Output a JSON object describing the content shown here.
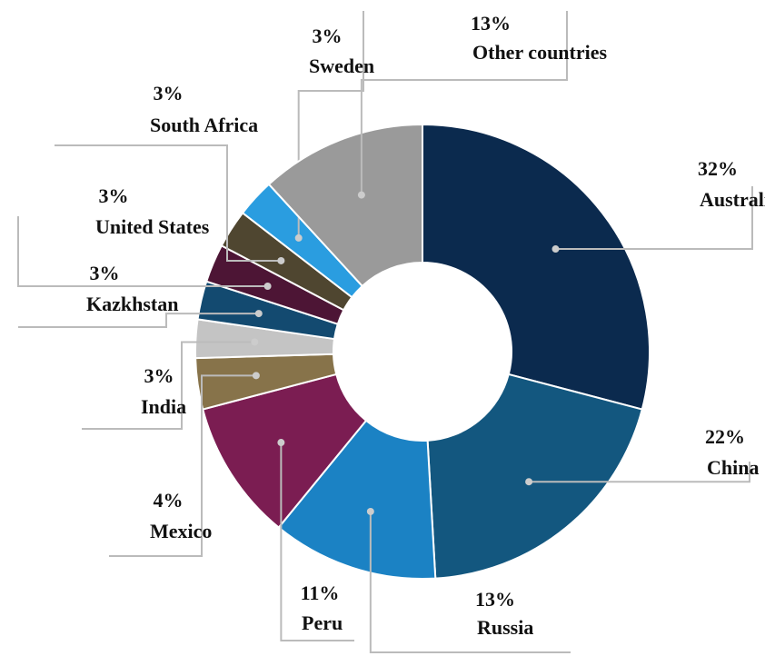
{
  "chart_data": {
    "type": "donut",
    "categories": [
      "Australia",
      "China",
      "Russia",
      "Peru",
      "Mexico",
      "India",
      "Kazkhstan",
      "United States",
      "South Africa",
      "Sweden",
      "Other countries"
    ],
    "values": [
      32,
      22,
      13,
      11,
      4,
      3,
      3,
      3,
      3,
      3,
      13
    ],
    "value_labels": [
      "32%",
      "22%",
      "13%",
      "11%",
      "4%",
      "3%",
      "3%",
      "3%",
      "3%",
      "3%",
      "13%"
    ],
    "colors": [
      "#0b2a4e",
      "#13577f",
      "#1b82c4",
      "#7b1d52",
      "#87734a",
      "#c4c4c4",
      "#134a70",
      "#4d1535",
      "#4f4630",
      "#2a9de0",
      "#9a9a9a"
    ]
  }
}
